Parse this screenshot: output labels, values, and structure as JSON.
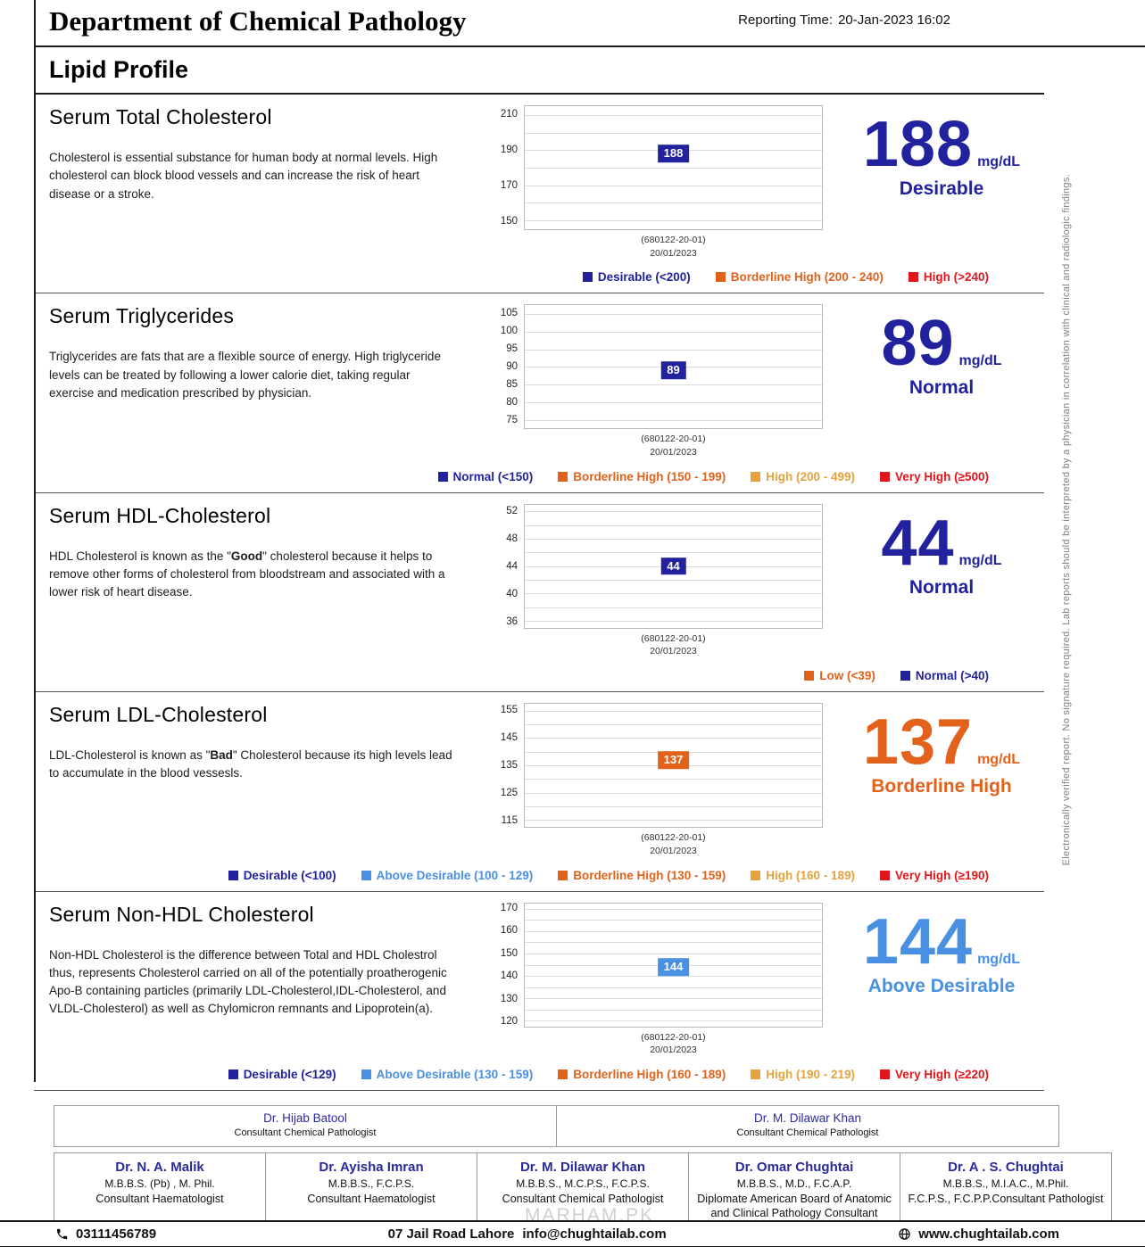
{
  "header": {
    "department": "Department of Chemical Pathology",
    "reporting_time_label": "Reporting Time:",
    "reporting_time_value": "20-Jan-2023 16:02",
    "report_title": "Lipid Profile"
  },
  "side_note": "Electronically verified report. No signature required. Lab reports should be interpreted by a physician in correlation with clinical and radiologic findings.",
  "colors": {
    "navy": "#22229e",
    "orange": "#e2621b",
    "amber": "#e6a23c",
    "red": "#e0161c",
    "lightblue": "#4a90e2"
  },
  "tests": [
    {
      "name": "Serum Total Cholesterol",
      "description": [
        {
          "t": "Cholesterol is essential substance for human body at normal levels. High cholesterol can block blood vessels and can increase the risk of heart disease or a stroke.",
          "b": false
        }
      ],
      "value": "188",
      "unit": "mg/dL",
      "status": "Desirable",
      "color": "#22229e",
      "chart": {
        "type": "scatter",
        "ticks": [
          210,
          190,
          170,
          150
        ],
        "grid_step": 10,
        "y_min": 150,
        "y_max": 210,
        "point": 188,
        "sample_id": "(680122-20-01)",
        "date": "20/01/2023"
      },
      "legend": [
        {
          "label": "Desirable (<200)",
          "color": "#22229e"
        },
        {
          "label": "Borderline High (200 - 240)",
          "color": "#e2621b"
        },
        {
          "label": "High (>240)",
          "color": "#e0161c"
        }
      ]
    },
    {
      "name": "Serum Triglycerides",
      "description": [
        {
          "t": "Triglycerides are fats that are a flexible source of energy. High triglyceride levels can be treated by following a lower calorie diet, taking regular exercise and medication prescribed by physician.",
          "b": false
        }
      ],
      "value": "89",
      "unit": "mg/dL",
      "status": "Normal",
      "color": "#22229e",
      "chart": {
        "type": "scatter",
        "ticks": [
          105,
          100,
          95,
          90,
          85,
          80,
          75
        ],
        "grid_step": 5,
        "y_min": 75,
        "y_max": 105,
        "point": 89,
        "sample_id": "(680122-20-01)",
        "date": "20/01/2023"
      },
      "legend": [
        {
          "label": "Normal (<150)",
          "color": "#22229e"
        },
        {
          "label": "Borderline High (150 - 199)",
          "color": "#e2621b"
        },
        {
          "label": "High (200 - 499)",
          "color": "#e6a23c"
        },
        {
          "label": "Very High (≥500)",
          "color": "#e0161c"
        }
      ]
    },
    {
      "name": "Serum HDL-Cholesterol",
      "description": [
        {
          "t": "HDL Cholesterol is known as the \"",
          "b": false
        },
        {
          "t": "Good",
          "b": true
        },
        {
          "t": "\" cholesterol because it helps to remove other forms of cholesterol from bloodstream and associated with a lower risk of heart disease.",
          "b": false
        }
      ],
      "value": "44",
      "unit": "mg/dL",
      "status": "Normal",
      "color": "#22229e",
      "chart": {
        "type": "scatter",
        "ticks": [
          52,
          48,
          44,
          40,
          36
        ],
        "grid_step": 2,
        "y_min": 36,
        "y_max": 52,
        "point": 44,
        "sample_id": "(680122-20-01)",
        "date": "20/01/2023"
      },
      "legend": [
        {
          "label": "Low (<39)",
          "color": "#e2621b"
        },
        {
          "label": "Normal (>40)",
          "color": "#22229e"
        }
      ]
    },
    {
      "name": "Serum LDL-Cholesterol",
      "description": [
        {
          "t": "LDL-Cholesterol is known as \"",
          "b": false
        },
        {
          "t": "Bad",
          "b": true
        },
        {
          "t": "\" Cholesterol because its high levels lead  to accumulate in the blood vessesls.",
          "b": false
        }
      ],
      "value": "137",
      "unit": "mg/dL",
      "status": "Borderline High",
      "color": "#e2621b",
      "chart": {
        "type": "scatter",
        "ticks": [
          155,
          145,
          135,
          125,
          115
        ],
        "grid_step": 5,
        "y_min": 115,
        "y_max": 155,
        "point": 137,
        "sample_id": "(680122-20-01)",
        "date": "20/01/2023"
      },
      "legend": [
        {
          "label": "Desirable (<100)",
          "color": "#22229e"
        },
        {
          "label": "Above Desirable (100 - 129)",
          "color": "#4a90e2"
        },
        {
          "label": "Borderline High (130 - 159)",
          "color": "#e2621b"
        },
        {
          "label": "High (160 - 189)",
          "color": "#e6a23c"
        },
        {
          "label": "Very High (≥190)",
          "color": "#e0161c"
        }
      ]
    },
    {
      "name": "Serum Non-HDL Cholesterol",
      "description": [
        {
          "t": "Non-HDL Cholesterol is the difference between Total and HDL Cholestrol thus, represents Cholesterol carried on all of the potentially proatherogenic Apo-B containing particles (primarily LDL-Cholesterol,IDL-Cholesterol, and VLDL-Cholesterol) as well as Chylomicron remnants and Lipoprotein(a).",
          "b": false
        }
      ],
      "value": "144",
      "unit": "mg/dL",
      "status": "Above Desirable",
      "color": "#4a90e2",
      "chart": {
        "type": "scatter",
        "ticks": [
          170,
          160,
          150,
          140,
          130,
          120
        ],
        "grid_step": 5,
        "y_min": 120,
        "y_max": 170,
        "point": 144,
        "sample_id": "(680122-20-01)",
        "date": "20/01/2023"
      },
      "legend": [
        {
          "label": "Desirable (<129)",
          "color": "#22229e"
        },
        {
          "label": "Above Desirable (130 - 159)",
          "color": "#4a90e2"
        },
        {
          "label": "Borderline High (160 - 189)",
          "color": "#e2621b"
        },
        {
          "label": "High (190 - 219)",
          "color": "#e6a23c"
        },
        {
          "label": "Very High (≥220)",
          "color": "#e0161c"
        }
      ]
    }
  ],
  "signatures_row1": [
    {
      "name": "Dr. Hijab Batool",
      "title": "Consultant Chemical Pathologist"
    },
    {
      "name": "Dr. M. Dilawar Khan",
      "title": "Consultant Chemical Pathologist"
    }
  ],
  "signatures_row2": [
    {
      "name": "Dr. N. A. Malik",
      "credentials": "M.B.B.S. (Pb) , M. Phil.",
      "title": "Consultant Haematologist"
    },
    {
      "name": "Dr. Ayisha Imran",
      "credentials": "M.B.B.S., F.C.P.S.",
      "title": "Consultant Haematologist"
    },
    {
      "name": "Dr. M. Dilawar Khan",
      "credentials": "M.B.B.S., M.C.P.S., F.C.P.S.",
      "title": "Consultant Chemical Pathologist"
    },
    {
      "name": "Dr. Omar Chughtai",
      "credentials": "M.B.B.S., M.D., F.C.A.P.",
      "title": "Diplomate American Board of Anatomic and Clinical Pathology Consultant Pathologist"
    },
    {
      "name": "Dr. A . S. Chughtai",
      "credentials": "M.B.B.S., M.I.A.C., M.Phil.",
      "title": "F.C.P.S., F.C.P.P.Consultant Pathologist"
    }
  ],
  "watermark": "MARHAM.PK",
  "footer": {
    "phone": "03111456789",
    "address": "07 Jail Road Lahore",
    "email": "info@chughtailab.com",
    "website": "www.chughtailab.com"
  }
}
